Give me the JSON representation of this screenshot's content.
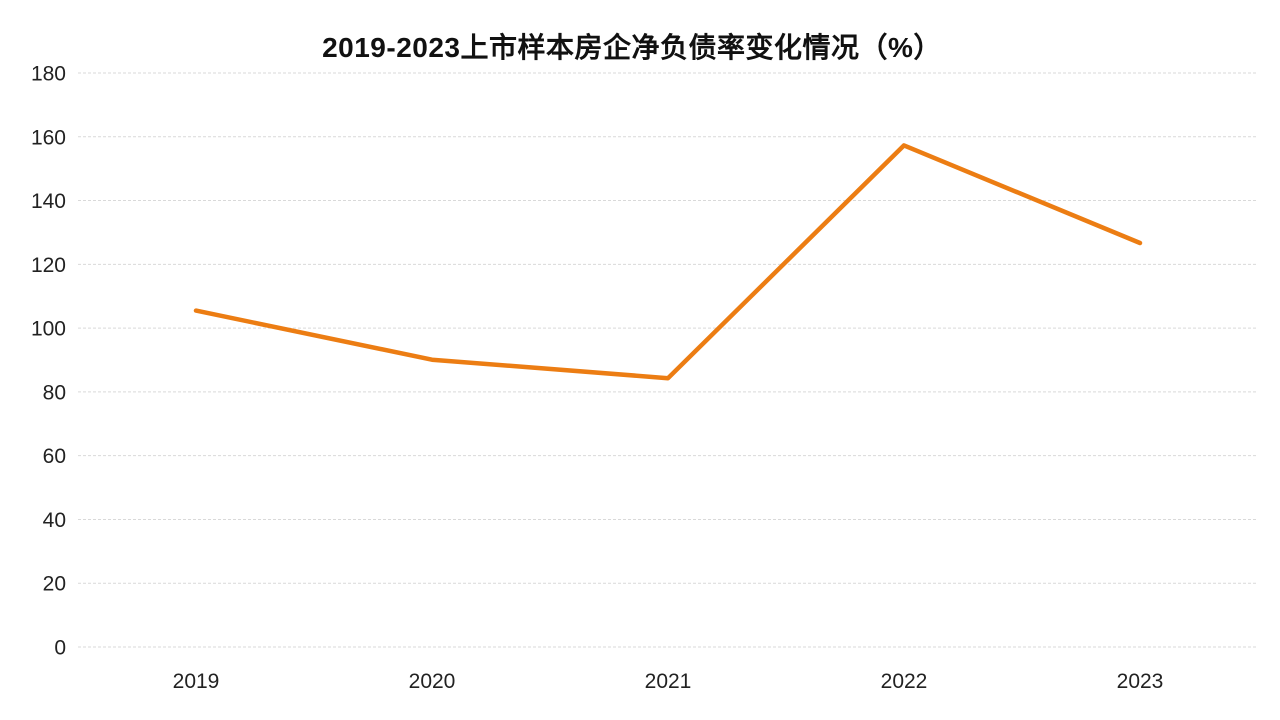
{
  "page": {
    "background_color": "#ffffff",
    "text_color": "#222222"
  },
  "chart_data": {
    "type": "line",
    "title": "2019-2023上市样本房企净负债率变化情况（%）",
    "categories": [
      "2019",
      "2020",
      "2021",
      "2022",
      "2023"
    ],
    "values": [
      105.5,
      90.1,
      84.3,
      157.3,
      126.7
    ],
    "xlabel": "",
    "ylabel": "",
    "ylim": [
      0,
      180
    ],
    "y_ticks": [
      0,
      20,
      40,
      60,
      80,
      100,
      120,
      140,
      160,
      180
    ],
    "grid": true,
    "gridline_style": "dashed",
    "legend_position": "none",
    "line_color": "#EC7D13",
    "gridline_color": "#D9D9D9",
    "title_color": "#111111",
    "tick_label_color": "#222222"
  }
}
